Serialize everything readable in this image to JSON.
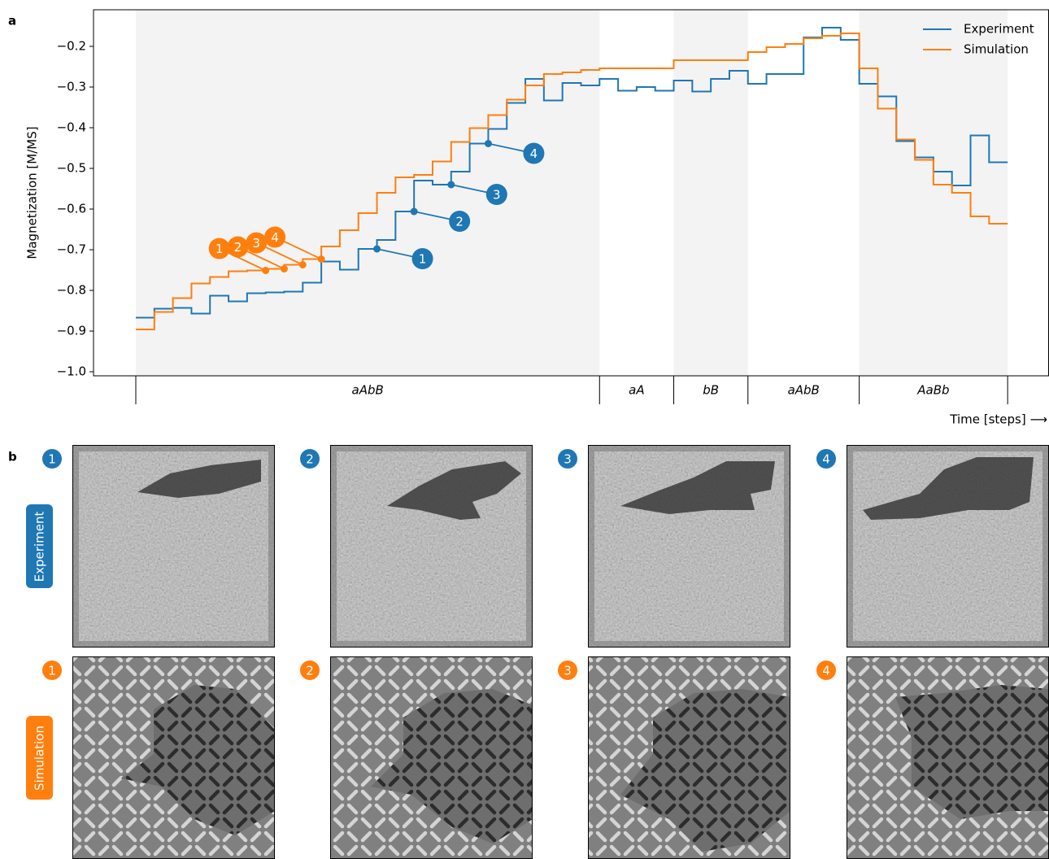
{
  "chart_data": {
    "type": "step",
    "panel_label": "a",
    "y_label": "Magnetization [M/MS]",
    "x_label": "Time [steps] ⟶",
    "legend": "upper right",
    "x": [
      0,
      1,
      2,
      3,
      4,
      5,
      6,
      7,
      8,
      9,
      10,
      11,
      12,
      13,
      14,
      15,
      16,
      17,
      18,
      19,
      20,
      21,
      22,
      23,
      24,
      25,
      26,
      27,
      28,
      29,
      30,
      31,
      32,
      33,
      34,
      35,
      36,
      37,
      38,
      39,
      40,
      41,
      42,
      43,
      44,
      45,
      46
    ],
    "xlim": [
      -2.28,
      49.23
    ],
    "ylim": [
      -1.01,
      -0.11
    ],
    "yticks": [
      {
        "value": -1.0,
        "label": "−1.0"
      },
      {
        "value": -0.9,
        "label": "−0.9"
      },
      {
        "value": -0.8,
        "label": "−0.8"
      },
      {
        "value": -0.7,
        "label": "−0.7"
      },
      {
        "value": -0.6,
        "label": "−0.6"
      },
      {
        "value": -0.5,
        "label": "−0.5"
      },
      {
        "value": -0.4,
        "label": "−0.4"
      },
      {
        "value": -0.3,
        "label": "−0.3"
      },
      {
        "value": -0.2,
        "label": "−0.2"
      }
    ],
    "segments": [
      {
        "label": "aAbB",
        "start": 0,
        "end": 25,
        "shaded": true
      },
      {
        "label": "aA",
        "start": 25,
        "end": 29,
        "shaded": false
      },
      {
        "label": "bB",
        "start": 29,
        "end": 33,
        "shaded": true
      },
      {
        "label": "aAbB",
        "start": 33,
        "end": 39,
        "shaded": false
      },
      {
        "label": "AaBb",
        "start": 39,
        "end": 47,
        "shaded": true
      }
    ],
    "series": [
      {
        "name": "Experiment",
        "color": "#1f77b4",
        "values": [
          -0.867,
          -0.845,
          -0.843,
          -0.857,
          -0.813,
          -0.827,
          -0.807,
          -0.805,
          -0.803,
          -0.781,
          -0.729,
          -0.749,
          -0.698,
          -0.676,
          -0.606,
          -0.53,
          -0.54,
          -0.508,
          -0.439,
          -0.403,
          -0.339,
          -0.28,
          -0.333,
          -0.29,
          -0.296,
          -0.28,
          -0.309,
          -0.3,
          -0.309,
          -0.284,
          -0.311,
          -0.28,
          -0.26,
          -0.292,
          -0.268,
          -0.268,
          -0.178,
          -0.154,
          -0.184,
          -0.292,
          -0.323,
          -0.433,
          -0.473,
          -0.508,
          -0.542,
          -0.419,
          -0.485
        ],
        "markers": [
          {
            "label": "1",
            "x": 13,
            "y": -0.698
          },
          {
            "label": "2",
            "x": 15,
            "y": -0.606
          },
          {
            "label": "3",
            "x": 17,
            "y": -0.54
          },
          {
            "label": "4",
            "x": 19,
            "y": -0.439
          }
        ]
      },
      {
        "name": "Simulation",
        "color": "#ff7f0e",
        "values": [
          -0.896,
          -0.853,
          -0.819,
          -0.783,
          -0.767,
          -0.753,
          -0.751,
          -0.747,
          -0.737,
          -0.723,
          -0.692,
          -0.652,
          -0.61,
          -0.56,
          -0.522,
          -0.516,
          -0.483,
          -0.435,
          -0.401,
          -0.369,
          -0.331,
          -0.296,
          -0.268,
          -0.264,
          -0.258,
          -0.254,
          -0.254,
          -0.254,
          -0.254,
          -0.234,
          -0.234,
          -0.234,
          -0.234,
          -0.214,
          -0.202,
          -0.194,
          -0.18,
          -0.174,
          -0.168,
          -0.254,
          -0.353,
          -0.429,
          -0.479,
          -0.54,
          -0.56,
          -0.618,
          -0.636
        ],
        "markers": [
          {
            "label": "1",
            "x": 7,
            "y": -0.751
          },
          {
            "label": "2",
            "x": 8,
            "y": -0.747
          },
          {
            "label": "3",
            "x": 9,
            "y": -0.737
          },
          {
            "label": "4",
            "x": 10,
            "y": -0.723
          }
        ]
      }
    ]
  },
  "panel_b": {
    "label": "b",
    "rows": [
      {
        "label": "Experiment"
      },
      {
        "label": "Simulation"
      }
    ]
  }
}
